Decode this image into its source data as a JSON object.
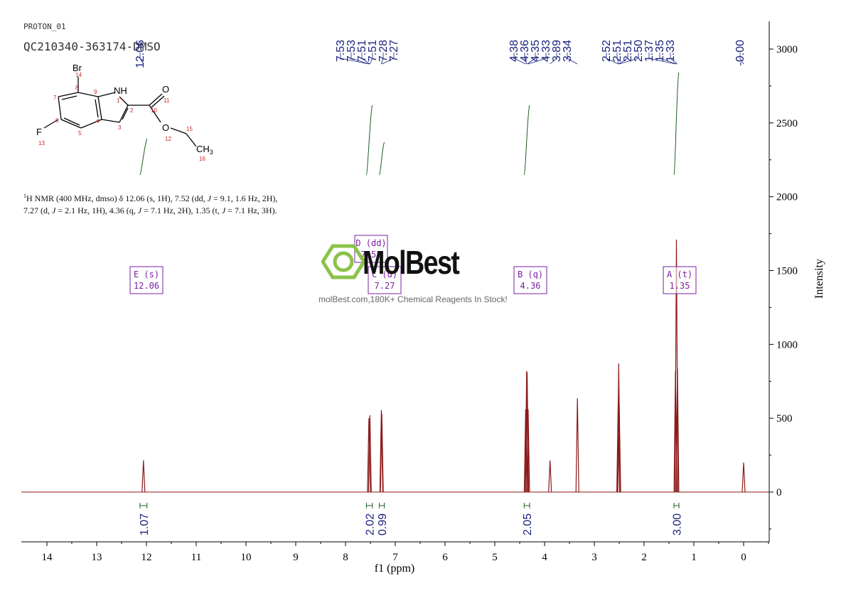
{
  "header": {
    "experiment": "PROTON_01",
    "sample_id": "QC210340-363174-DMSO"
  },
  "nmr_description": {
    "nucleus_sup": "1",
    "prefix": "H NMR (400 MHz, dmso) δ 12.06 (s, 1H), 7.52 (dd, ",
    "j_symbol": "J",
    "part2": " = 9.1, 1.6 Hz, 2H),",
    "line2_a": "7.27 (d, ",
    "line2_b": " = 2.1 Hz, 1H), 4.36 (q, ",
    "line2_c": " = 7.1 Hz, 2H), 1.35 (t, ",
    "line2_d": " = 7.1 Hz, 3H)."
  },
  "structure": {
    "atoms": [
      "Br",
      "NH",
      "O",
      "F",
      "O",
      "CH3"
    ],
    "atom_numbers": [
      "14",
      "8",
      "9",
      "1",
      "2",
      "10",
      "11",
      "7",
      "6",
      "4",
      "3",
      "5",
      "12",
      "15",
      "16",
      "13"
    ]
  },
  "watermark": {
    "brand": "MolBest",
    "tagline": "molBest.com,180K+ Chemical Reagents In Stock!"
  },
  "chart_data": {
    "type": "line",
    "title": "",
    "xlabel": "f1 (ppm)",
    "ylabel": "Intensity",
    "xlim": [
      14.5,
      -0.5
    ],
    "x_reversed": true,
    "ylim": [
      -350,
      3200
    ],
    "x_ticks": [
      "14",
      "13",
      "12",
      "11",
      "10",
      "9",
      "8",
      "7",
      "6",
      "5",
      "4",
      "3",
      "2",
      "1",
      "0"
    ],
    "y_ticks": [
      "0",
      "500",
      "1000",
      "1500",
      "2000",
      "2500",
      "3000"
    ],
    "peaks": [
      {
        "ppm": 12.06,
        "height": 215
      },
      {
        "ppm": 7.53,
        "height": 500
      },
      {
        "ppm": 7.51,
        "height": 520
      },
      {
        "ppm": 7.28,
        "height": 555
      },
      {
        "ppm": 7.27,
        "height": 530
      },
      {
        "ppm": 4.38,
        "height": 560
      },
      {
        "ppm": 4.36,
        "height": 820
      },
      {
        "ppm": 4.35,
        "height": 810
      },
      {
        "ppm": 4.33,
        "height": 560
      },
      {
        "ppm": 3.89,
        "height": 215
      },
      {
        "ppm": 3.34,
        "height": 635
      },
      {
        "ppm": 2.52,
        "height": 620
      },
      {
        "ppm": 2.51,
        "height": 870
      },
      {
        "ppm": 2.5,
        "height": 600
      },
      {
        "ppm": 1.37,
        "height": 820
      },
      {
        "ppm": 1.35,
        "height": 1710
      },
      {
        "ppm": 1.33,
        "height": 840
      },
      {
        "ppm": 0.0,
        "height": 200
      }
    ],
    "peak_labels": [
      {
        "group": 1,
        "text": "12.06"
      },
      {
        "group": 2,
        "text": "7.53"
      },
      {
        "group": 2,
        "text": "7.53"
      },
      {
        "group": 2,
        "text": "7.51"
      },
      {
        "group": 2,
        "text": "7.51"
      },
      {
        "group": 2,
        "text": "7.28"
      },
      {
        "group": 2,
        "text": "7.27"
      },
      {
        "group": 3,
        "text": "4.38"
      },
      {
        "group": 3,
        "text": "4.36"
      },
      {
        "group": 3,
        "text": "4.35"
      },
      {
        "group": 3,
        "text": "4.33"
      },
      {
        "group": 3,
        "text": "3.89"
      },
      {
        "group": 3,
        "text": "3.34"
      },
      {
        "group": 4,
        "text": "2.52"
      },
      {
        "group": 4,
        "text": "2.51"
      },
      {
        "group": 4,
        "text": "2.51"
      },
      {
        "group": 4,
        "text": "2.50"
      },
      {
        "group": 4,
        "text": "1.37"
      },
      {
        "group": 4,
        "text": "1.35"
      },
      {
        "group": 4,
        "text": "1.33"
      },
      {
        "group": 5,
        "text": "-0.00"
      }
    ],
    "multiplets": [
      {
        "id": "E",
        "type": "s",
        "shift": "12.06"
      },
      {
        "id": "D",
        "type": "dd",
        "shift": "7.52"
      },
      {
        "id": "C",
        "type": "d",
        "shift": "7.27"
      },
      {
        "id": "B",
        "type": "q",
        "shift": "4.36"
      },
      {
        "id": "A",
        "type": "t",
        "shift": "1.35"
      }
    ],
    "integrals": [
      {
        "ppm_from": 12.13,
        "ppm_to": 11.99,
        "value": "1.07"
      },
      {
        "ppm_from": 7.58,
        "ppm_to": 7.46,
        "value": "2.02"
      },
      {
        "ppm_from": 7.32,
        "ppm_to": 7.22,
        "value": "0.99"
      },
      {
        "ppm_from": 4.41,
        "ppm_to": 4.3,
        "value": "2.05"
      },
      {
        "ppm_from": 1.4,
        "ppm_to": 1.3,
        "value": "3.00"
      }
    ],
    "colors": {
      "spectrum": "#8b1a1a",
      "peak_labels": "#1a237e",
      "integral": "#1b5e20",
      "multiplet_box": "#7b1fa2",
      "logo": "#8bc34a"
    },
    "grid": false
  }
}
